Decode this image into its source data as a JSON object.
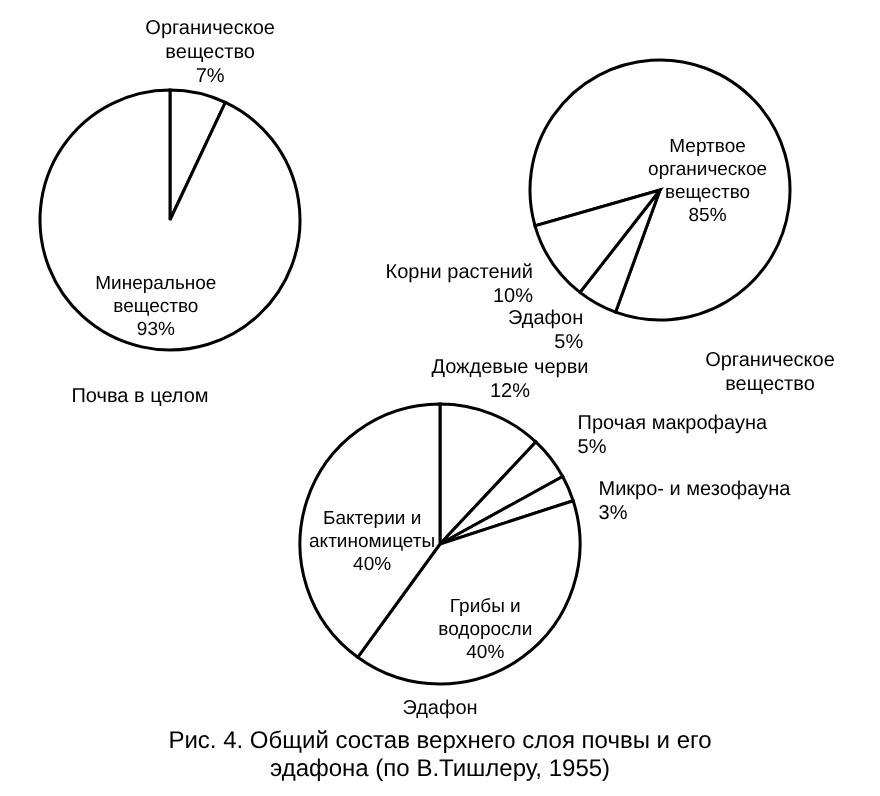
{
  "chart_data": [
    {
      "type": "pie",
      "title": "Почва в целом",
      "categories": [
        "Органическое вещество",
        "Минеральное вещество"
      ],
      "values": [
        7,
        93
      ],
      "value_labels": [
        "7%",
        "93%"
      ],
      "colors": [
        "#ffffff",
        "#ffffff"
      ]
    },
    {
      "type": "pie",
      "title": "Органическое вещество",
      "categories": [
        "Мертвое органическое вещество",
        "Эдафон",
        "Корни растений"
      ],
      "values": [
        85,
        5,
        10
      ],
      "value_labels": [
        "85%",
        "5%",
        "10%"
      ],
      "colors": [
        "#ffffff",
        "#ffffff",
        "#ffffff"
      ]
    },
    {
      "type": "pie",
      "title": "Эдафон",
      "categories": [
        "Дождевые черви",
        "Прочая макрофауна",
        "Микро- и мезофауна",
        "Грибы и водоросли",
        "Бактерии и актиномицеты"
      ],
      "values": [
        12,
        5,
        3,
        40,
        40
      ],
      "value_labels": [
        "12%",
        "5%",
        "3%",
        "40%",
        "40%"
      ],
      "colors": [
        "#ffffff",
        "#ffffff",
        "#ffffff",
        "#ffffff",
        "#ffffff"
      ],
      "annotations": [
        "Рис. 4. Общий состав верхнего слоя почвы и его эдафона (по В.Тишлеру, 1955)"
      ]
    }
  ]
}
